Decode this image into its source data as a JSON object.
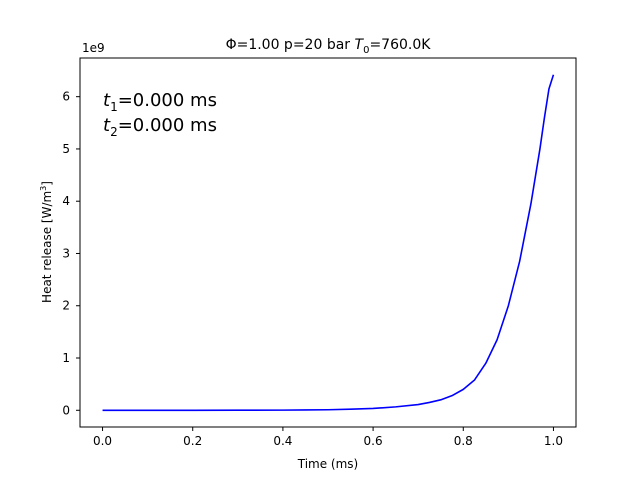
{
  "chart_data": {
    "type": "line",
    "title": "Φ=1.00 p=20 bar T₀=760.0K",
    "title_parts": {
      "prefix": "Φ=1.00 p=20 bar ",
      "var": "T",
      "sub": "0",
      "suffix": "=760.0K"
    },
    "xlabel": "Time (ms)",
    "ylabel": "Heat release [W/m³]",
    "ylabel_parts": {
      "main": "Heat release [W/m",
      "sup": "3",
      "end": "]"
    },
    "y_offset_label": "1e9",
    "xlim": [
      -0.05,
      1.05
    ],
    "ylim": [
      -0.32,
      6.74
    ],
    "xticks": [
      0.0,
      0.2,
      0.4,
      0.6,
      0.8,
      1.0
    ],
    "xtick_labels": [
      "0.0",
      "0.2",
      "0.4",
      "0.6",
      "0.8",
      "1.0"
    ],
    "yticks": [
      0,
      1,
      2,
      3,
      4,
      5,
      6
    ],
    "ytick_labels": [
      "0",
      "1",
      "2",
      "3",
      "4",
      "5",
      "6"
    ],
    "grid": false,
    "annotations": [
      {
        "var": "t",
        "sub": "1",
        "text": "=0.000 ms"
      },
      {
        "var": "t",
        "sub": "2",
        "text": "=0.000 ms"
      }
    ],
    "series": [
      {
        "color": "#0000ff",
        "x": [
          0.0,
          0.1,
          0.2,
          0.3,
          0.4,
          0.45,
          0.5,
          0.55,
          0.6,
          0.65,
          0.7,
          0.725,
          0.75,
          0.775,
          0.8,
          0.825,
          0.85,
          0.875,
          0.9,
          0.925,
          0.95,
          0.97,
          0.98,
          0.99,
          1.0
        ],
        "values": [
          0.0,
          0.0,
          0.0,
          0.001,
          0.003,
          0.006,
          0.01,
          0.02,
          0.035,
          0.065,
          0.11,
          0.15,
          0.2,
          0.28,
          0.4,
          0.58,
          0.9,
          1.35,
          2.0,
          2.85,
          3.95,
          5.0,
          5.6,
          6.15,
          6.42
        ]
      }
    ]
  }
}
